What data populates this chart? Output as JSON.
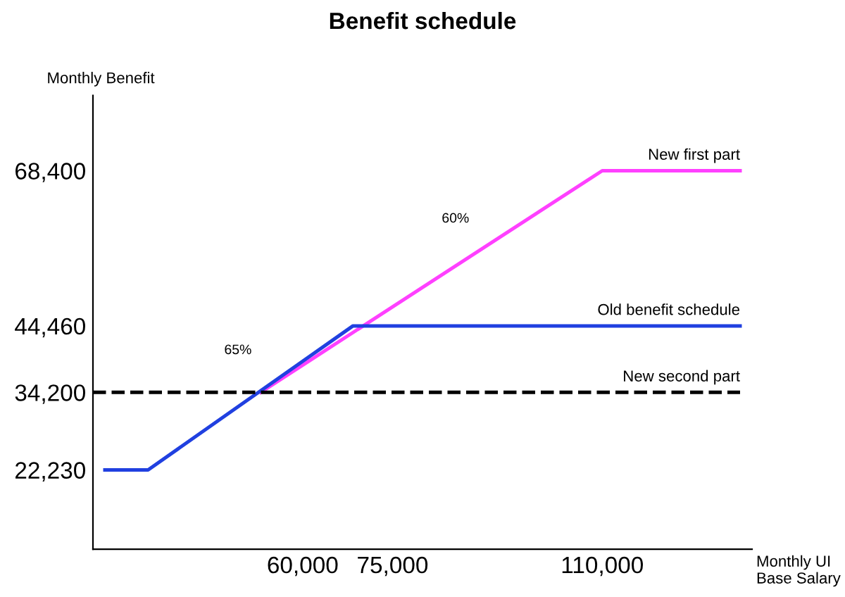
{
  "chart_data": {
    "type": "line",
    "title": "Benefit schedule",
    "xlabel": "Monthly UI Base Salary",
    "ylabel": "Monthly Benefit",
    "xlim": [
      25000,
      135000
    ],
    "ylim": [
      10000,
      80000
    ],
    "xticks": [
      {
        "value": 60000,
        "label": "60,000"
      },
      {
        "value": 75000,
        "label": "75,000"
      },
      {
        "value": 110000,
        "label": "110,000"
      }
    ],
    "yticks": [
      {
        "value": 22230,
        "label": "22,230"
      },
      {
        "value": 34200,
        "label": "34,200"
      },
      {
        "value": 44460,
        "label": "44,460"
      },
      {
        "value": 68400,
        "label": "68,400"
      }
    ],
    "series": [
      {
        "name": "New first part",
        "color": "#ff40ff",
        "x": [
          53000,
          110000,
          133000
        ],
        "values": [
          34200,
          68400,
          68400
        ],
        "line_style": "solid"
      },
      {
        "name": "Old benefit schedule",
        "color": "#2040e0",
        "x": [
          27000,
          34200,
          68400,
          133000
        ],
        "values": [
          22230,
          22230,
          44460,
          44460
        ],
        "line_style": "solid"
      },
      {
        "name": "New second part",
        "color": "#000000",
        "x": [
          25000,
          133000
        ],
        "values": [
          34200,
          34200
        ],
        "line_style": "dashed"
      }
    ],
    "annotations": [
      "65%",
      "60%"
    ],
    "grid": false,
    "legend": false,
    "marker": "none"
  }
}
